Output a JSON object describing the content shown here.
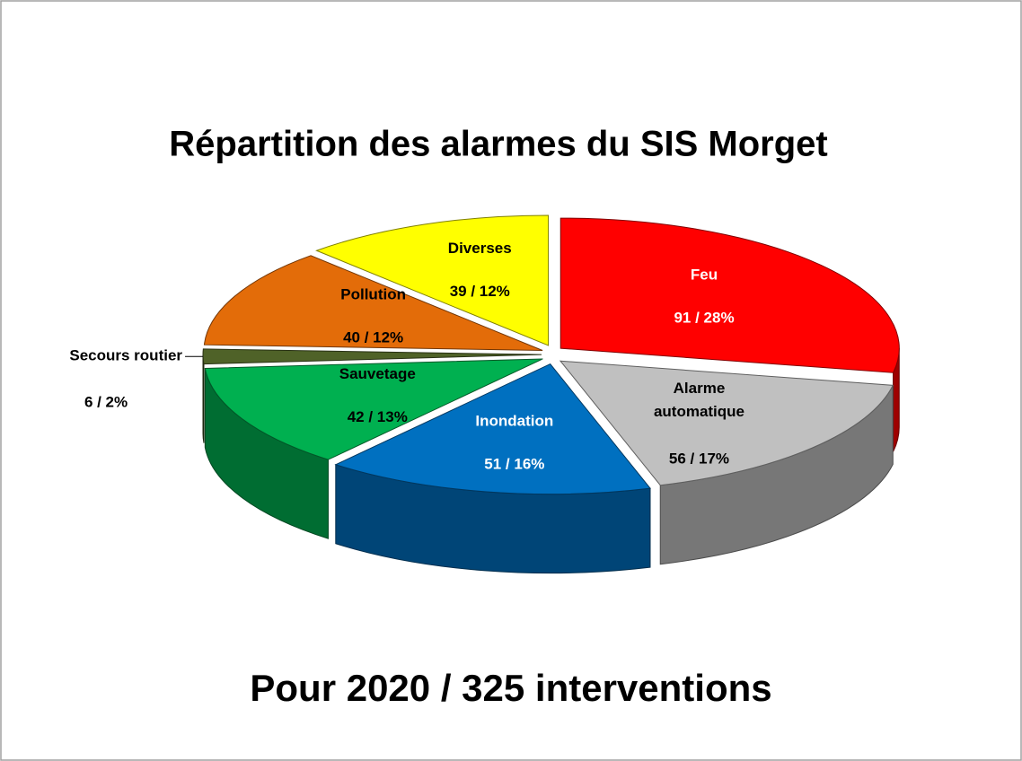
{
  "chart_data": {
    "type": "pie3d",
    "title": "Répartition des alarmes du SIS Morget",
    "subtitle": "Pour 2020 / 325 interventions",
    "categories": [
      "Feu",
      "Alarme automatique",
      "Inondation",
      "Sauvetage",
      "Secours routier",
      "Pollution",
      "Diverses"
    ],
    "values": [
      91,
      56,
      51,
      42,
      6,
      40,
      39
    ],
    "value_labels": [
      "91 / 28%",
      "56 / 17%",
      "51 / 16%",
      "42 / 13%",
      "6 / 2%",
      "40 / 12%",
      "39 / 12%"
    ],
    "colors": [
      "#ff0000",
      "#c0c0c0",
      "#0070c0",
      "#00b050",
      "#4f6228",
      "#e36c09",
      "#ffff00"
    ]
  }
}
